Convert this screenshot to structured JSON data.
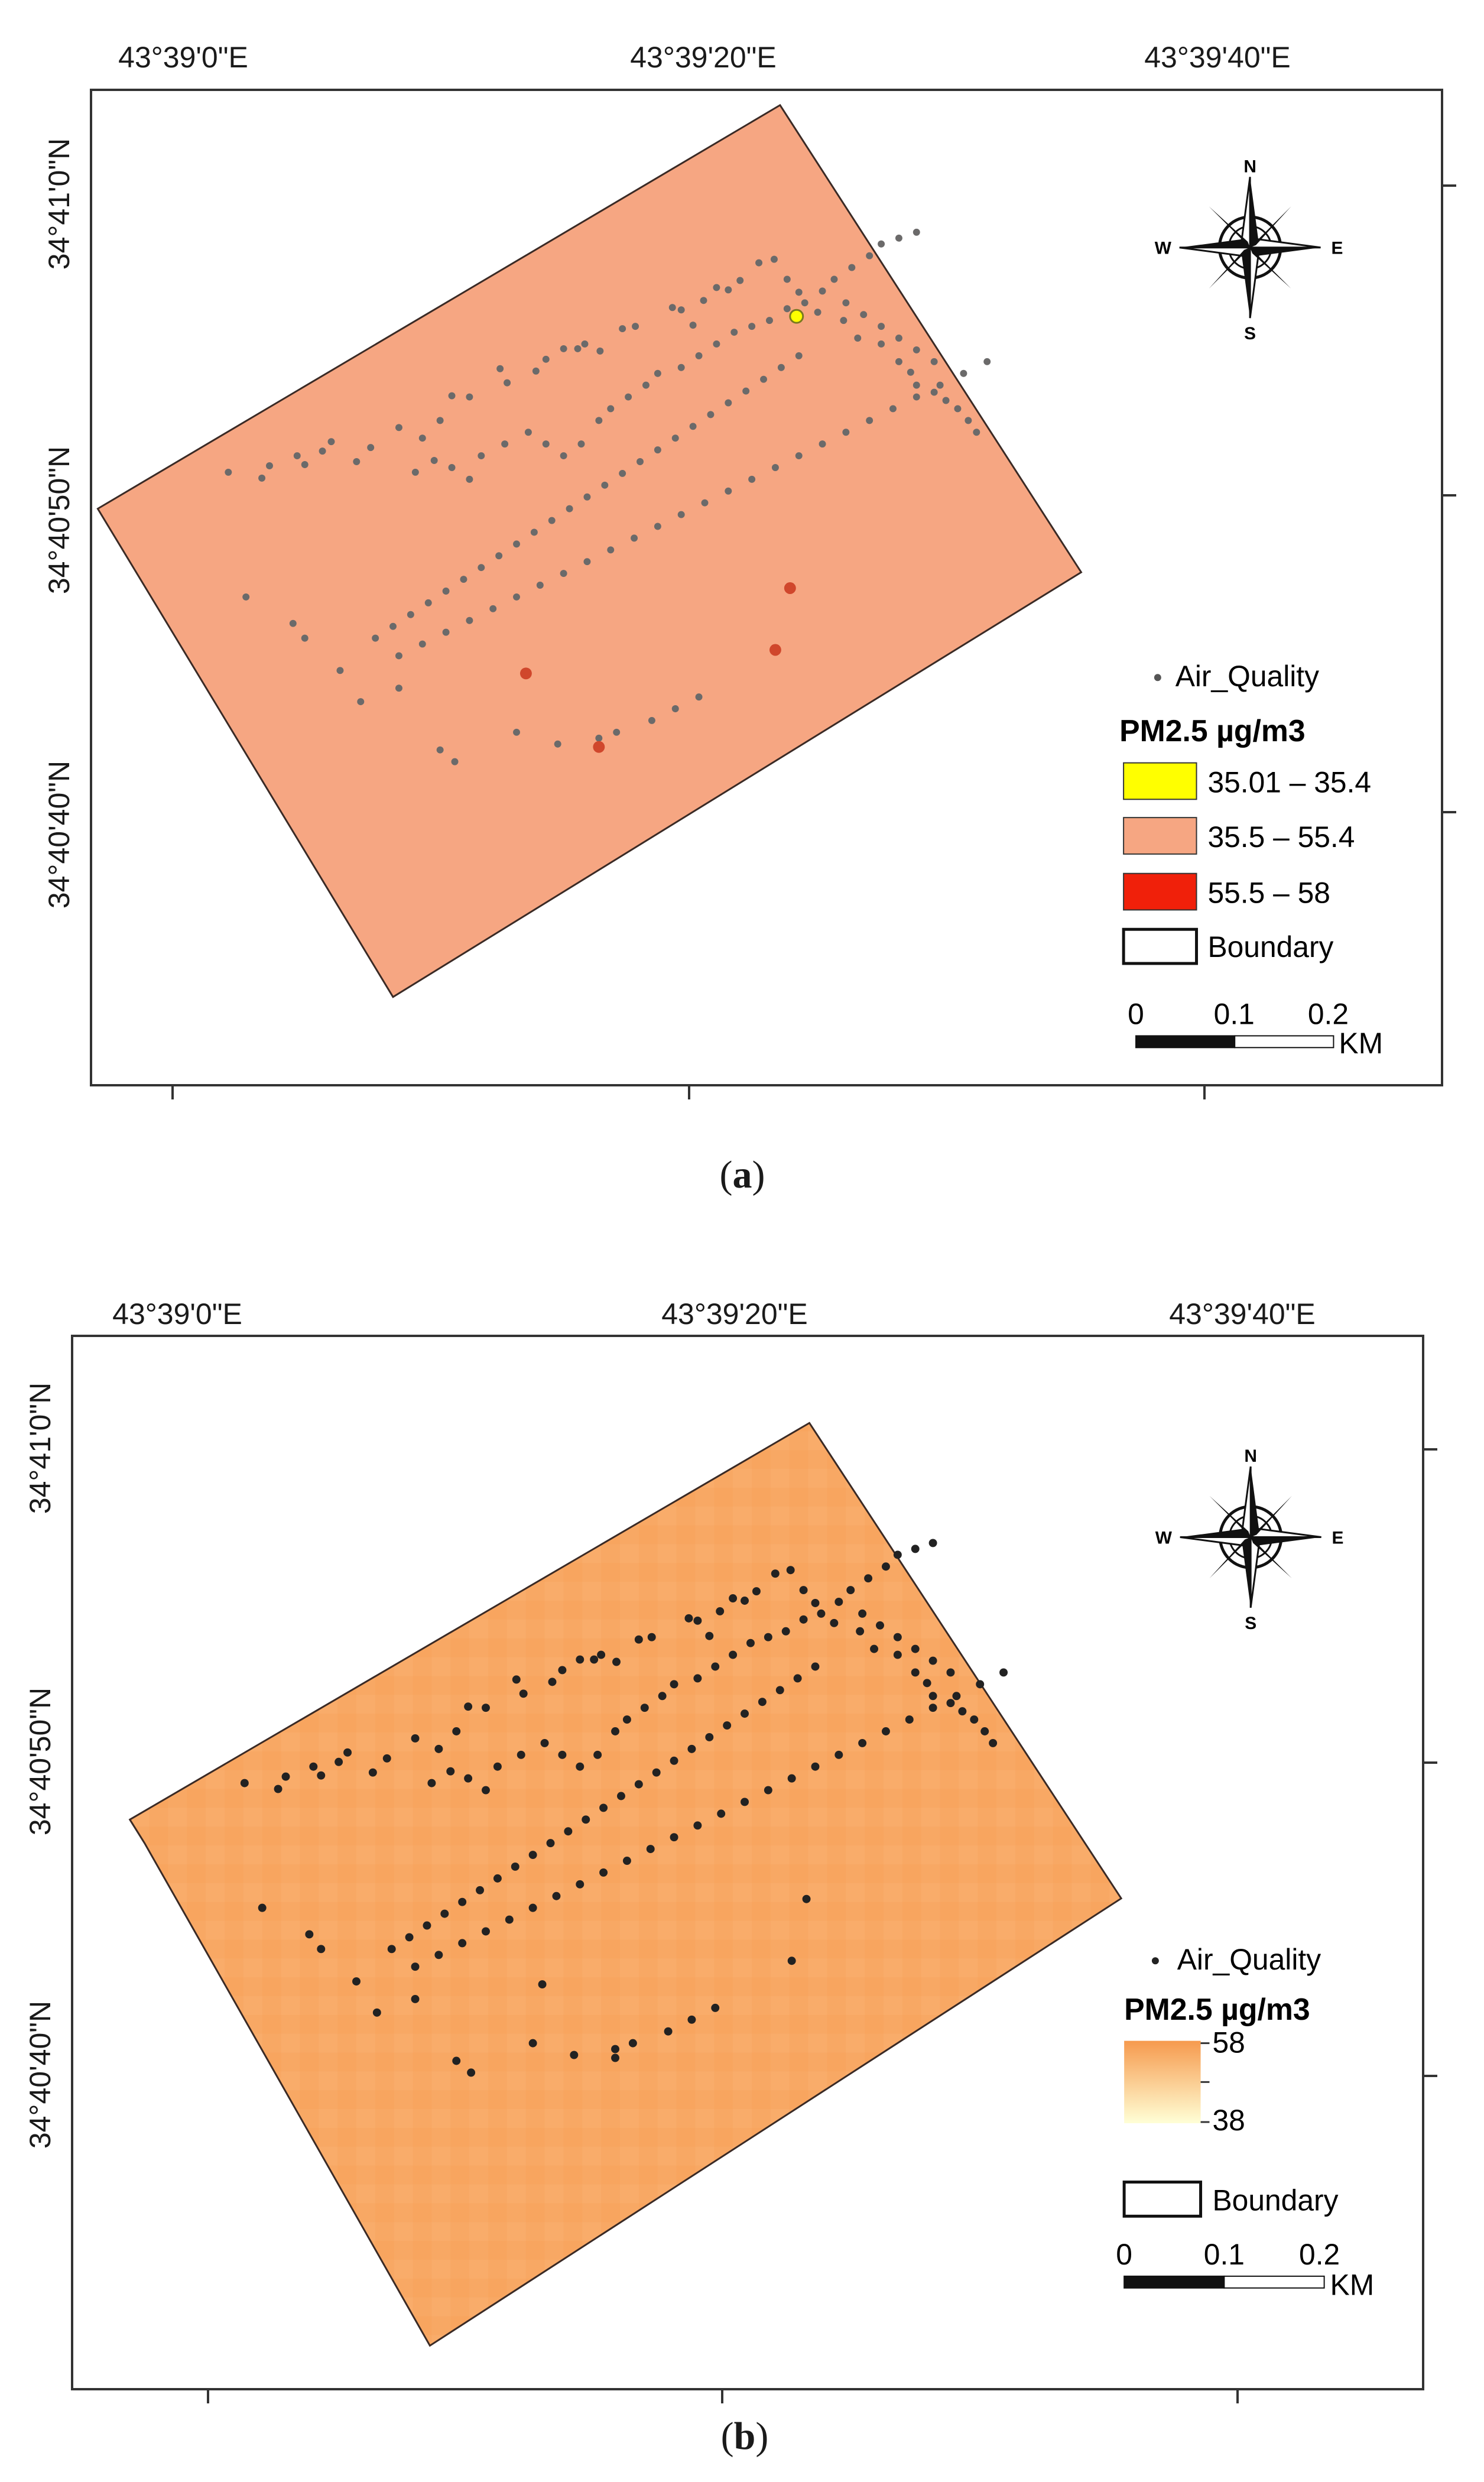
{
  "colors": {
    "boundary_stroke": "#3a2a25",
    "fill_a": "#F6A682",
    "point_gray": "#6b6a6a",
    "point_yellow": "#FFFF00",
    "point_red": "#D0472C",
    "class_yellow": "#FFFF00",
    "class_salmon": "#F6A682",
    "class_red": "#F0200A",
    "fill_b": "#F8A864",
    "ramp_high": "#F69A4E",
    "ramp_low": "#FFFFD6",
    "point_black": "#222222"
  },
  "panel_a": {
    "caption_open": "(",
    "caption_letter": "a",
    "caption_close": ")",
    "lon_labels": [
      "43°39'0\"E",
      "43°39'20\"E",
      "43°39'40\"E"
    ],
    "lat_labels": [
      "34°41'0\"N",
      "34°40'50\"N",
      "34°40'40\"N"
    ],
    "north_arrow": {
      "n": "N",
      "s": "S",
      "e": "E",
      "w": "W",
      "icon": "compass-rose-icon"
    },
    "legend": {
      "points_label": "Air_Quality",
      "title": "PM2.5  µg/m3",
      "classes": [
        {
          "label": "35.01 – 35.4",
          "color": "#FFFF00"
        },
        {
          "label": "35.5 – 55.4",
          "color": "#F6A682"
        },
        {
          "label": "55.5 – 58",
          "color": "#F0200A"
        }
      ],
      "boundary_label": "Boundary"
    },
    "scale_bar": {
      "ticks": [
        "0",
        "0.1",
        "0.2"
      ],
      "unit": "KM"
    }
  },
  "panel_b": {
    "caption_open": "(",
    "caption_letter": "b",
    "caption_close": ")",
    "lon_labels": [
      "43°39'0\"E",
      "43°39'20\"E",
      "43°39'40\"E"
    ],
    "lat_labels": [
      "34°41'0\"N",
      "34°40'50\"N",
      "34°40'40\"N"
    ],
    "north_arrow": {
      "n": "N",
      "s": "S",
      "e": "E",
      "w": "W",
      "icon": "compass-rose-icon"
    },
    "legend": {
      "points_label": "Air_Quality",
      "title": "PM2.5  µg/m3",
      "ramp_max": "58",
      "ramp_min": "38",
      "boundary_label": "Boundary"
    },
    "scale_bar": {
      "ticks": [
        "0",
        "0.1",
        "0.2"
      ],
      "unit": "KM"
    }
  }
}
